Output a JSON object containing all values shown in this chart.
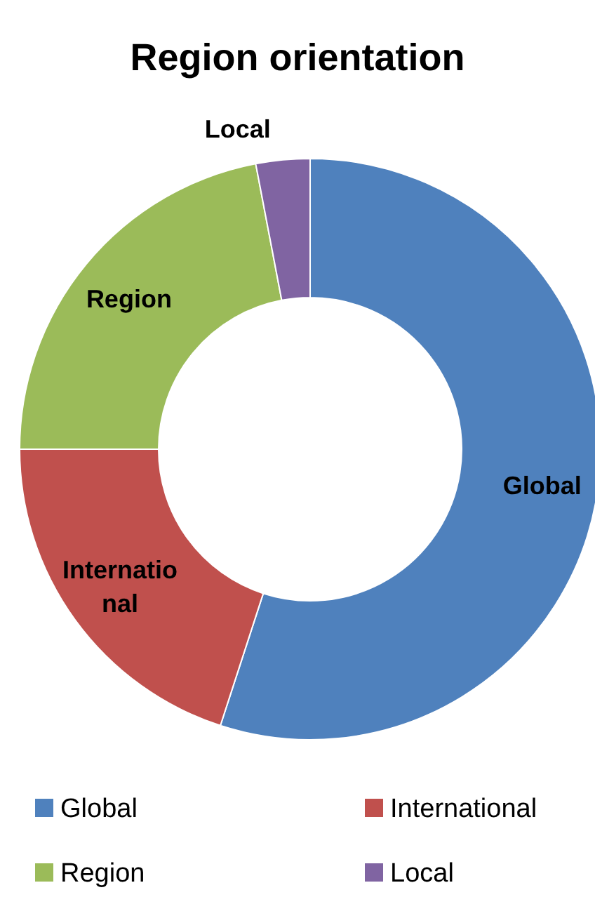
{
  "chart_data": {
    "type": "donut",
    "title": "Region orientation",
    "categories": [
      "Global",
      "International",
      "Region",
      "Local"
    ],
    "values": [
      55,
      20,
      22,
      3
    ],
    "colors": [
      "#4f81bd",
      "#c0504d",
      "#9bbb59",
      "#8064a2"
    ],
    "legend": "bottom"
  }
}
